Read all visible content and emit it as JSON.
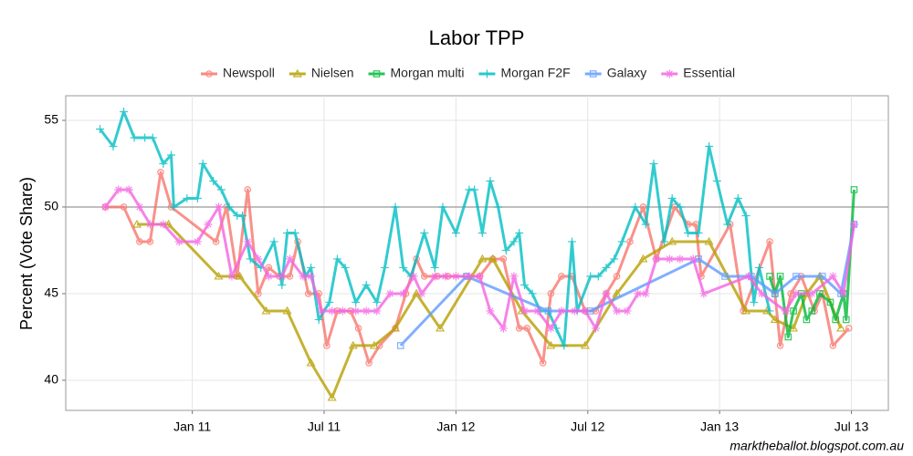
{
  "chart_data": {
    "type": "line",
    "title": "Labor TPP",
    "y_label": "Percent (Vote Share)",
    "caption": "marktheballot.blogspot.com.au",
    "xlim": [
      2010.52,
      2013.64
    ],
    "ylim": [
      38.26,
      56.42
    ],
    "xticks": [
      {
        "value": 2011,
        "label": "Jan 11"
      },
      {
        "value": 2011.5,
        "label": "Jul 11"
      },
      {
        "value": 2012,
        "label": "Jan 12"
      },
      {
        "value": 2012.5,
        "label": "Jul 12"
      },
      {
        "value": 2013,
        "label": "Jan 13"
      },
      {
        "value": 2013.5,
        "label": "Jul 13"
      }
    ],
    "yticks": [
      40,
      45,
      50,
      55
    ],
    "hline": 50,
    "grid": true,
    "legend": "top",
    "series": [
      {
        "name": "Newspoll",
        "color": "#F8766D",
        "marker": "circle",
        "x": [
          2010.67,
          2010.74,
          2010.8,
          2010.84,
          2010.88,
          2010.92,
          2011.09,
          2011.13,
          2011.17,
          2011.21,
          2011.25,
          2011.29,
          2011.33,
          2011.37,
          2011.4,
          2011.44,
          2011.48,
          2011.51,
          2011.55,
          2011.6,
          2011.63,
          2011.67,
          2011.71,
          2011.77,
          2011.81,
          2011.85,
          2011.88,
          2011.93,
          2011.97,
          2012.04,
          2012.09,
          2012.14,
          2012.18,
          2012.24,
          2012.27,
          2012.33,
          2012.36,
          2012.4,
          2012.44,
          2012.49,
          2012.53,
          2012.57,
          2012.61,
          2012.66,
          2012.71,
          2012.76,
          2012.83,
          2012.88,
          2012.91,
          2012.93,
          2013.04,
          2013.09,
          2013.19,
          2013.23,
          2013.27,
          2013.31,
          2013.36,
          2013.39,
          2013.43,
          2013.49
        ],
        "values": [
          50,
          50,
          48,
          48,
          52,
          50,
          48,
          50,
          46,
          51,
          45,
          46.5,
          46,
          46,
          48,
          45,
          45,
          42,
          44,
          44,
          43,
          41,
          42,
          43,
          45,
          47,
          46,
          46,
          46,
          46,
          46,
          47,
          47,
          43,
          43,
          41,
          45,
          46,
          46,
          44,
          44,
          45,
          46,
          48,
          50,
          47,
          50,
          49,
          49,
          46,
          49,
          44,
          48,
          42,
          45,
          46,
          44,
          45,
          42,
          43
        ]
      },
      {
        "name": "Nielsen",
        "color": "#B79F00",
        "marker": "triangle",
        "x": [
          2010.79,
          2010.91,
          2011.1,
          2011.18,
          2011.28,
          2011.36,
          2011.45,
          2011.53,
          2011.61,
          2011.69,
          2011.77,
          2011.85,
          2011.94,
          2012.1,
          2012.14,
          2012.25,
          2012.36,
          2012.49,
          2012.61,
          2012.71,
          2012.82,
          2012.96,
          2013.1,
          2013.18,
          2013.21,
          2013.28,
          2013.33,
          2013.38,
          2013.46
        ],
        "values": [
          49,
          49,
          46,
          46,
          44,
          44,
          41,
          39,
          42,
          42,
          43,
          45,
          43,
          47,
          47,
          44,
          42,
          42,
          45,
          47,
          48,
          48,
          44,
          44,
          43.5,
          43,
          45,
          46,
          43
        ]
      },
      {
        "name": "Morgan multi",
        "color": "#00BA38",
        "marker": "square",
        "x": [
          2013.19,
          2013.21,
          2013.23,
          2013.26,
          2013.28,
          2013.31,
          2013.33,
          2013.35,
          2013.38,
          2013.42,
          2013.44,
          2013.47,
          2013.48,
          2013.51
        ],
        "values": [
          46,
          45,
          46,
          42.5,
          44,
          45,
          43.5,
          44,
          45,
          44.5,
          43.5,
          45,
          43.5,
          51
        ]
      },
      {
        "name": "Morgan F2F",
        "color": "#00BFC4",
        "marker": "plus",
        "x": [
          2010.65,
          2010.7,
          2010.74,
          2010.78,
          2010.82,
          2010.85,
          2010.89,
          2010.92,
          2010.93,
          2010.98,
          2011.02,
          2011.04,
          2011.08,
          2011.11,
          2011.14,
          2011.17,
          2011.19,
          2011.22,
          2011.26,
          2011.31,
          2011.34,
          2011.36,
          2011.39,
          2011.43,
          2011.45,
          2011.48,
          2011.52,
          2011.55,
          2011.58,
          2011.62,
          2011.66,
          2011.7,
          2011.73,
          2011.77,
          2011.8,
          2011.83,
          2011.88,
          2011.92,
          2011.95,
          2012.0,
          2012.05,
          2012.07,
          2012.1,
          2012.13,
          2012.16,
          2012.19,
          2012.22,
          2012.24,
          2012.26,
          2012.29,
          2012.32,
          2012.35,
          2012.38,
          2012.41,
          2012.44,
          2012.46,
          2012.51,
          2012.54,
          2012.57,
          2012.6,
          2012.63,
          2012.68,
          2012.72,
          2012.75,
          2012.79,
          2012.82,
          2012.85,
          2012.88,
          2012.92,
          2012.96,
          2012.99,
          2013.03,
          2013.07,
          2013.1,
          2013.13,
          2013.15,
          2013.19
        ],
        "values": [
          54.5,
          53.5,
          55.5,
          54,
          54,
          54,
          52.5,
          53,
          50,
          50.5,
          50.5,
          52.5,
          51.5,
          51,
          50,
          49.5,
          49.5,
          47,
          46.5,
          48,
          45.5,
          48.5,
          48.5,
          46,
          46.5,
          43.5,
          44.5,
          47,
          46.5,
          44.5,
          45.5,
          44.5,
          46.5,
          50,
          46.5,
          46,
          48.5,
          46.5,
          50,
          48.5,
          51,
          51,
          48.5,
          51.5,
          50,
          47.5,
          48,
          48.5,
          45.5,
          45,
          44,
          44,
          43,
          42,
          48,
          44,
          46,
          46,
          46.5,
          47,
          48,
          50,
          49,
          52.5,
          48,
          50.5,
          50,
          48.5,
          48.5,
          53.5,
          51.5,
          49,
          50.5,
          49.5,
          44.5,
          46.5,
          44
        ]
      },
      {
        "name": "Galaxy",
        "color": "#619CFF",
        "marker": "square",
        "x": [
          2011.79,
          2012.04,
          2012.35,
          2012.51,
          2012.92,
          2013.02,
          2013.12,
          2013.21,
          2013.29,
          2013.39,
          2013.46,
          2013.51
        ],
        "values": [
          42,
          46,
          44,
          44,
          47,
          46,
          46,
          45,
          46,
          46,
          45,
          49
        ]
      },
      {
        "name": "Essential",
        "color": "#F564E3",
        "marker": "asterisk",
        "x": [
          2010.67,
          2010.72,
          2010.76,
          2010.8,
          2010.84,
          2010.89,
          2010.95,
          2011.02,
          2011.06,
          2011.1,
          2011.15,
          2011.21,
          2011.25,
          2011.29,
          2011.34,
          2011.37,
          2011.42,
          2011.45,
          2011.49,
          2011.53,
          2011.57,
          2011.62,
          2011.66,
          2011.7,
          2011.75,
          2011.8,
          2011.84,
          2011.87,
          2011.92,
          2011.96,
          2012.0,
          2012.05,
          2012.09,
          2012.13,
          2012.18,
          2012.22,
          2012.26,
          2012.31,
          2012.36,
          2012.4,
          2012.45,
          2012.49,
          2012.53,
          2012.57,
          2012.61,
          2012.65,
          2012.69,
          2012.72,
          2012.76,
          2012.81,
          2012.85,
          2012.9,
          2012.94,
          2013.11,
          2013.16,
          2013.25,
          2013.29,
          2013.35,
          2013.43,
          2013.47,
          2013.51
        ],
        "values": [
          50,
          51,
          51,
          50,
          49,
          49,
          48,
          48,
          49,
          50,
          46,
          48,
          47,
          46,
          46,
          47,
          46,
          46,
          44,
          44,
          44,
          44,
          44,
          44,
          45,
          45,
          46,
          45,
          46,
          46,
          46,
          46,
          46,
          44,
          43,
          46,
          44,
          44,
          43,
          44,
          44,
          44,
          43,
          45,
          44,
          44,
          45,
          45,
          47,
          47,
          47,
          47,
          45,
          46,
          45,
          44,
          45,
          45,
          46,
          45,
          49
        ]
      }
    ]
  }
}
